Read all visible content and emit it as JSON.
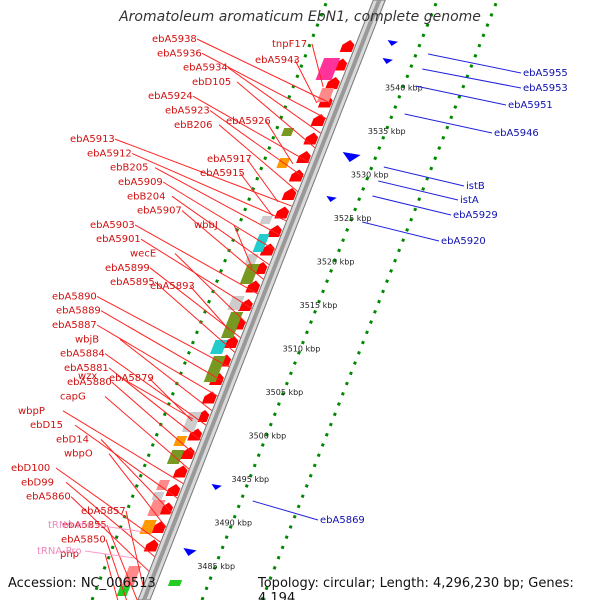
{
  "title": "Aromatoleum aromaticum EbN1, complete genome",
  "footer": {
    "accession": "Accession: NC_006513",
    "summary": "Topology: circular; Length: 4,296,230 bp; Genes: 4,194"
  },
  "colors": {
    "forward_gene": "#ff0000",
    "reverse_gene": "#0000ff",
    "rna_gene": "#ff99cc",
    "backbone": "#999999",
    "tick": "#008800",
    "feature_olive": "#779922",
    "feature_cyan": "#22cccc",
    "feature_grey": "#cccccc",
    "feature_orange": "#ff9900",
    "feature_pink": "#ff3399",
    "feature_salmon": "#ff8888",
    "feature_green": "#22cc22"
  },
  "kbp_ticks": [
    "3485 kbp",
    "3490 kbp",
    "3495 kbp",
    "3500 kbp",
    "3505 kbp",
    "3510 kbp",
    "3515 kbp",
    "3520 kbp",
    "3525 kbp",
    "3530 kbp",
    "3535 kbp",
    "3540 kbp"
  ],
  "left_labels": [
    "ebA5938",
    "ebA5936",
    "ebA5934",
    "ebD105",
    "ebA5924",
    "ebA5923",
    "ebB206",
    "ebA5913",
    "ebA5912",
    "ebB205",
    "ebA5909",
    "ebB204",
    "ebA5907",
    "ebA5903",
    "ebA5901",
    "wecE",
    "ebA5899",
    "ebA5895",
    "ebA5890",
    "ebA5889",
    "ebA5887",
    "wbjB",
    "ebA5884",
    "ebA5881",
    "ebA5880",
    "capG",
    "wbpP",
    "ebD15",
    "ebD14",
    "wbpO",
    "ebD100",
    "ebD99",
    "ebA5860",
    "ebA5857",
    "ebA5855",
    "ebA5850",
    "pnp"
  ],
  "mid_labels": [
    "tnpF17",
    "ebA5943",
    "ebA5926",
    "ebA5917",
    "ebA5915",
    "wbbJ",
    "ebA5893",
    "wzx",
    "ebA5879"
  ],
  "rna_labels": [
    "tRNA-His",
    "tRNA-Pro"
  ],
  "right_labels": [
    "ebA5955",
    "ebA5953",
    "ebA5951",
    "ebA5946",
    "istB",
    "istA",
    "ebA5929",
    "ebA5920",
    "ebA5869"
  ]
}
